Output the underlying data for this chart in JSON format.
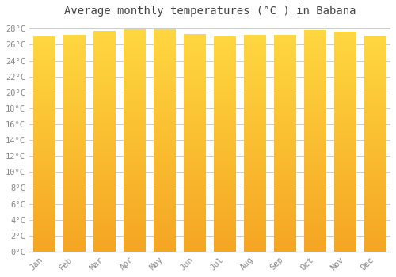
{
  "title": "Average monthly temperatures (°C ) in Babana",
  "months": [
    "Jan",
    "Feb",
    "Mar",
    "Apr",
    "May",
    "Jun",
    "Jul",
    "Aug",
    "Sep",
    "Oct",
    "Nov",
    "Dec"
  ],
  "values": [
    27.0,
    27.2,
    27.7,
    27.9,
    27.9,
    27.3,
    27.0,
    27.2,
    27.2,
    27.8,
    27.6,
    27.1
  ],
  "bar_color_center": "#FFD740",
  "bar_color_edge": "#F5A623",
  "background_color": "#FFFFFF",
  "plot_bg_color": "#FFFFFF",
  "grid_color": "#CCCCCC",
  "ylim": [
    0,
    29
  ],
  "ytick_step": 2,
  "title_fontsize": 10,
  "tick_fontsize": 7.5,
  "font_family": "monospace",
  "bar_width": 0.72
}
